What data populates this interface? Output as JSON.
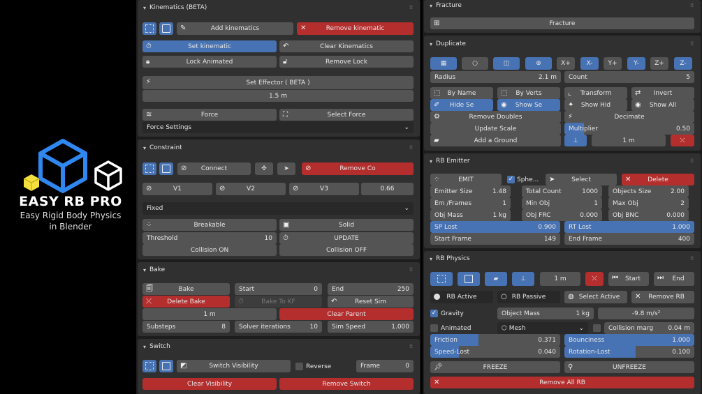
{
  "brand": {
    "title": "EASY RB PRO",
    "subtitle": "Easy Rigid Body Physics",
    "subtitle2": "in Blender",
    "colors": {
      "blue": "#2f87f0",
      "yellow": "#f4e03c",
      "white": "#ffffff"
    }
  },
  "kinematics": {
    "header": "Kinematics (BETA)",
    "add": "Add kinematics",
    "remove": "Remove kinematic",
    "set": "Set kinematic",
    "clear": "Clear Kinematics",
    "lock": "Lock Animated",
    "remove_lock": "Remove Lock",
    "effector": "Set Effector ( BETA )",
    "effector_value": "1.5 m",
    "force": "Force",
    "select_force": "Select Force",
    "force_settings": "Force Settings"
  },
  "constraint": {
    "header": "Constraint",
    "connect": "Connect",
    "remove": "Remove Co",
    "v1": "V1",
    "v2": "V2",
    "v3": "V3",
    "value": "0.66",
    "type": "Fixed",
    "breakable": "Breakable",
    "solid": "Solid",
    "threshold_label": "Threshold",
    "threshold_value": "10",
    "update": "UPDATE",
    "collision_on": "Collision ON",
    "collision_off": "Collision OFF"
  },
  "bake": {
    "header": "Bake",
    "bake": "Bake",
    "start_label": "Start",
    "start_value": "0",
    "end_label": "End",
    "end_value": "250",
    "delete": "Delete Bake",
    "bake_to_kf": "Bake To KF",
    "reset_sim": "Reset Sim",
    "distance": "1 m",
    "clear_parent": "Clear Parent",
    "substeps_label": "Substeps",
    "substeps_value": "8",
    "solver_label": "Solver iterations",
    "solver_value": "10",
    "speed_label": "Sim Speed",
    "speed_value": "1.000"
  },
  "switch": {
    "header": "Switch",
    "visibility": "Switch Visibility",
    "reverse": "Reverse",
    "frame_label": "Frame",
    "frame_value": "0",
    "clear_visibility": "Clear Visibility",
    "remove": "Remove  Switch"
  },
  "fracture": {
    "header": "Fracture",
    "button": "Fracture"
  },
  "duplicate": {
    "header": "Duplicate",
    "axes": [
      "X+",
      "X-",
      "Y+",
      "Y-",
      "Z+",
      "Z-"
    ],
    "radius_label": "Radius",
    "radius_value": "2.1 m",
    "count_label": "Count",
    "count_value": "5",
    "by_name": "By Name",
    "by_verts": "By Verts",
    "transform": "Transform",
    "invert": "Invert",
    "hide_se": "Hide Se",
    "show_se": "Show Se",
    "show_hid": "Show Hid",
    "show_all": "Show All",
    "remove_doubles": "Remove Doubles",
    "decimate": "Decimate",
    "update_scale": "Update Scale",
    "multiplier_label": "Multiplier",
    "multiplier_value": "0.50",
    "multiplier_level": 0.5,
    "add_ground": "Add a Ground",
    "ground_value": "1 m"
  },
  "emitter": {
    "header": "RB Emitter",
    "emit": "EMIT",
    "sphere": "Sphe...",
    "select": "Select",
    "delete": "Delete",
    "emitter_size_label": "Emitter Size",
    "emitter_size": "1.48",
    "total_count_label": "Total Count",
    "total_count": "1000",
    "objects_size_label": "Objects Size",
    "objects_size": "2.00",
    "em_frames_label": "Em /Frames",
    "em_frames": "1",
    "min_obj_label": "Min Obj",
    "min_obj": "1",
    "max_obj_label": "Max Obj",
    "max_obj": "2",
    "obj_mass_label": "Obj Mass",
    "obj_mass": "1 kg",
    "obj_frc_label": "Obj FRC",
    "obj_frc": "0.000",
    "obj_bnc_label": "Obj BNC",
    "obj_bnc": "0.000",
    "sp_lost_label": "SP Lost",
    "sp_lost": "0.900",
    "rt_lost_label": "RT Lost",
    "rt_lost": "1.000",
    "start_frame_label": "Start Frame",
    "start_frame": "149",
    "end_frame_label": "End Frame",
    "end_frame": "400"
  },
  "physics": {
    "header": "RB Physics",
    "distance": "1 m",
    "start": "Start",
    "end": "End",
    "rb_active": "RB Active",
    "rb_passive": "RB Passive",
    "select_active": "Select Active",
    "remove_rb": "Remove RB",
    "gravity": "Gravity",
    "object_mass_label": "Object Mass",
    "object_mass": "1 kg",
    "gravity_value": "-9.8 m/s²",
    "animated": "Animated",
    "mesh": "Mesh",
    "collision_label": "Collision marg",
    "collision_value": "0.04 m",
    "friction_label": "Friction",
    "friction": "0.371",
    "friction_level": 0.371,
    "bounciness_label": "Bounciness",
    "bounciness": "1.000",
    "speed_lost_label": "Speed-Lost",
    "speed_lost": "0.040",
    "speed_lost_level": 0.04,
    "rotation_lost_label": "Rotation-Lost",
    "rotation_lost": "0.100",
    "rotation_lost_level": 0.1,
    "freeze": "FREEZE",
    "unfreeze": "UNFREEZE",
    "remove_all": "Remove All RB"
  }
}
